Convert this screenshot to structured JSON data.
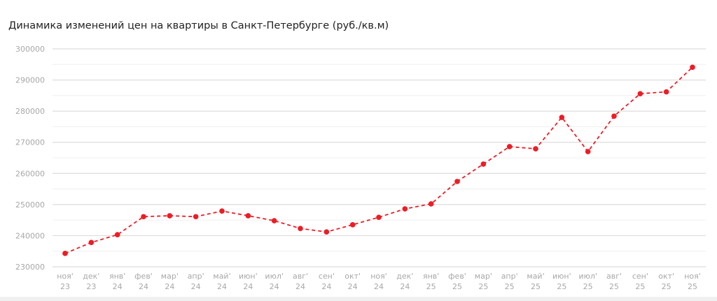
{
  "chart_data": {
    "type": "line",
    "title": "Динамика изменений цен на квартиры в Санкт-Петербурге (руб./кв.м)",
    "xlabel": "",
    "ylabel": "",
    "ylim": [
      230000,
      300000
    ],
    "yticks": [
      "230000",
      "240000",
      "250000",
      "260000",
      "270000",
      "280000",
      "290000",
      "300000"
    ],
    "grid": true,
    "line_style": "dashed",
    "color": "#ee1c25",
    "categories": [
      [
        "ноя'",
        "23"
      ],
      [
        "дек'",
        "23"
      ],
      [
        "янв'",
        "24"
      ],
      [
        "фев'",
        "24"
      ],
      [
        "мар'",
        "24"
      ],
      [
        "апр'",
        "24"
      ],
      [
        "май'",
        "24"
      ],
      [
        "июн'",
        "24"
      ],
      [
        "июл'",
        "24"
      ],
      [
        "авг'",
        "24"
      ],
      [
        "сен'",
        "24"
      ],
      [
        "окт'",
        "24"
      ],
      [
        "ноя'",
        "24"
      ],
      [
        "дек'",
        "24"
      ],
      [
        "янв'",
        "25"
      ],
      [
        "фев'",
        "25"
      ],
      [
        "мар'",
        "25"
      ],
      [
        "апр'",
        "25"
      ],
      [
        "май'",
        "25"
      ],
      [
        "июн'",
        "25"
      ],
      [
        "июл'",
        "25"
      ],
      [
        "авг'",
        "25"
      ],
      [
        "сен'",
        "25"
      ],
      [
        "окт'",
        "25"
      ],
      [
        "ноя'",
        "25"
      ]
    ],
    "values": [
      234300,
      237800,
      240300,
      246100,
      246400,
      246100,
      247900,
      246400,
      244800,
      242300,
      241200,
      243500,
      245900,
      248600,
      250200,
      257400,
      263000,
      268600,
      267900,
      278000,
      267000,
      278400,
      285600,
      286200,
      294100
    ]
  }
}
